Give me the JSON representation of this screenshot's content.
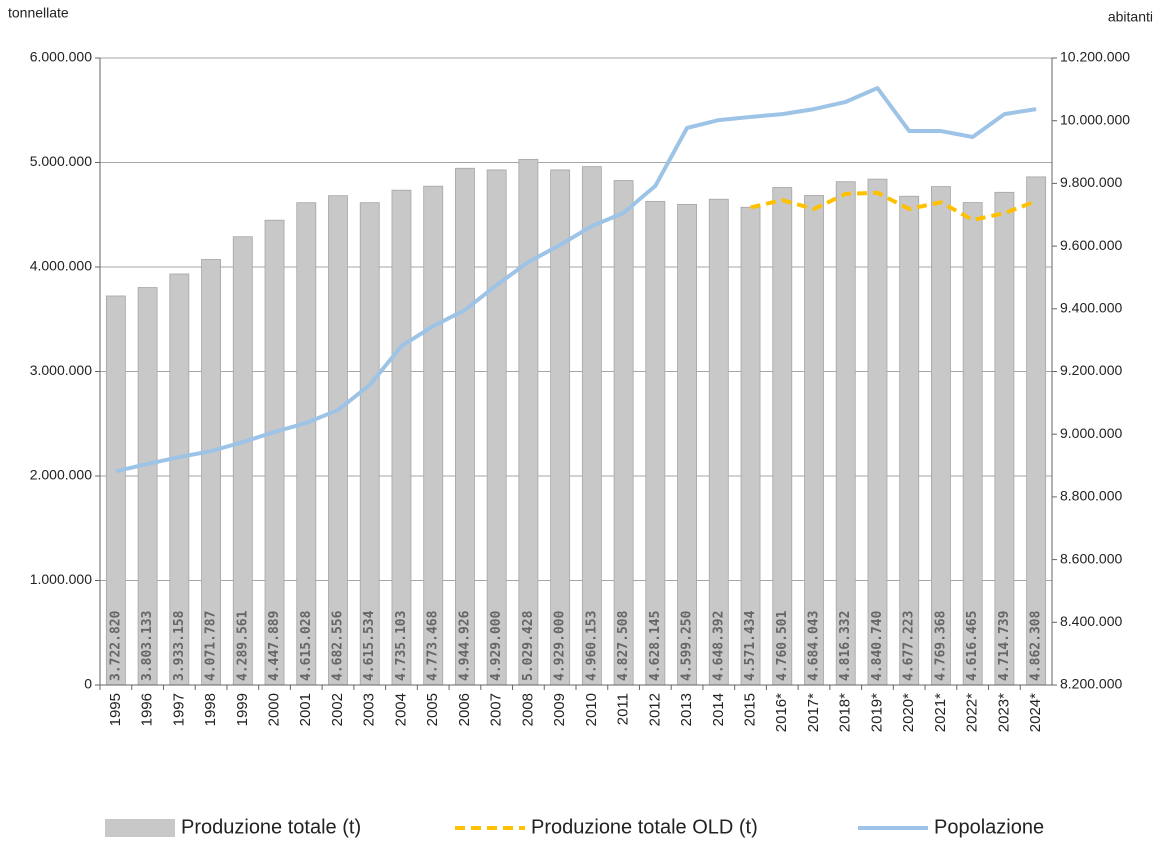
{
  "chart_data": {
    "type": "bar",
    "y_label": "tonnellate",
    "y2_label": "abitanti",
    "categories": [
      "1995",
      "1996",
      "1997",
      "1998",
      "1999",
      "2000",
      "2001",
      "2002",
      "2003",
      "2004",
      "2005",
      "2006",
      "2007",
      "2008",
      "2009",
      "2010",
      "2011",
      "2012",
      "2013",
      "2014",
      "2015",
      "2016*",
      "2017*",
      "2018*",
      "2019*",
      "2020*",
      "2021*",
      "2022*",
      "2023*",
      "2024*"
    ],
    "series": [
      {
        "name": "Produzione totale (t)",
        "type": "bar",
        "color": "#c8c8c8",
        "values": [
          3722820,
          3803133,
          3933158,
          4071787,
          4289561,
          4447889,
          4615028,
          4682556,
          4615534,
          4735103,
          4773468,
          4944926,
          4929000,
          5029428,
          4929000,
          4960153,
          4827508,
          4628145,
          4599250,
          4648392,
          4571434,
          4760501,
          4684043,
          4816332,
          4840740,
          4677223,
          4769368,
          4616465,
          4714739,
          4862308
        ],
        "value_labels": [
          "3.722.820",
          "3.803.133",
          "3.933.158",
          "4.071.787",
          "4.289.561",
          "4.447.889",
          "4.615.028",
          "4.682.556",
          "4.615.534",
          "4.735.103",
          "4.773.468",
          "4.944.926",
          "4.929.000",
          "5.029.428",
          "4.929.000",
          "4.960.153",
          "4.827.508",
          "4.628.145",
          "4.599.250",
          "4.648.392",
          "4.571.434",
          "4.760.501",
          "4.684.043",
          "4.816.332",
          "4.840.740",
          "4.677.223",
          "4.769.368",
          "4.616.465",
          "4.714.739",
          "4.862.308"
        ]
      },
      {
        "name": "Produzione totale OLD (t)",
        "type": "line",
        "dashed": true,
        "color": "#ffc000",
        "values": [
          null,
          null,
          null,
          null,
          null,
          null,
          null,
          null,
          null,
          null,
          null,
          null,
          null,
          null,
          null,
          null,
          null,
          null,
          null,
          null,
          4570000,
          4640000,
          4555000,
          4700000,
          4710000,
          4555000,
          4620000,
          4450000,
          4515000,
          4630000
        ]
      },
      {
        "name": "Popolazione",
        "type": "line",
        "axis": "y2",
        "color": "#9dc3e6",
        "values": [
          8882000,
          8905000,
          8927000,
          8946000,
          8975000,
          9007000,
          9036000,
          9077000,
          9157000,
          9281000,
          9345000,
          9396000,
          9476000,
          9549000,
          9604000,
          9664000,
          9706000,
          9792000,
          9977000,
          10002000,
          10012000,
          10021000,
          10037000,
          10060000,
          10104000,
          9967000,
          9967000,
          9948000,
          10021000,
          10037000
        ]
      }
    ],
    "ylim": [
      0,
      6000000
    ],
    "yticks": [
      0,
      {
        "value": 1000000,
        "label": "1.000.000"
      },
      {
        "value": 2000000,
        "label": "2.000.000"
      },
      {
        "value": 3000000,
        "label": "3.000.000"
      },
      {
        "value": 4000000,
        "label": "4.000.000"
      },
      {
        "value": 5000000,
        "label": "5.000.000"
      },
      {
        "value": 6000000,
        "label": "6.000.000"
      }
    ],
    "y2lim": [
      8200000,
      10200000
    ],
    "y2ticks": [
      {
        "value": 8200000,
        "label": "8.200.000"
      },
      {
        "value": 8400000,
        "label": "8.400.000"
      },
      {
        "value": 8600000,
        "label": "8.600.000"
      },
      {
        "value": 8800000,
        "label": "8.800.000"
      },
      {
        "value": 9000000,
        "label": "9.000.000"
      },
      {
        "value": 9200000,
        "label": "9.200.000"
      },
      {
        "value": 9400000,
        "label": "9.400.000"
      },
      {
        "value": 9600000,
        "label": "9.600.000"
      },
      {
        "value": 9800000,
        "label": "9.800.000"
      },
      {
        "value": 10000000,
        "label": "10.000.000"
      },
      {
        "value": 10200000,
        "label": "10.200.000"
      }
    ],
    "grid": true
  }
}
